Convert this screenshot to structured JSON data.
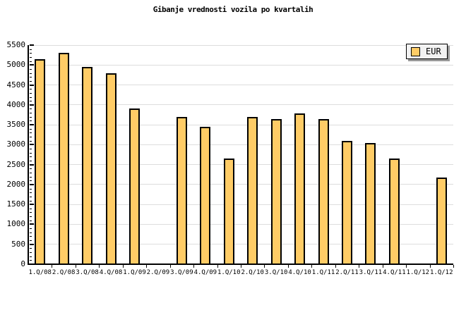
{
  "title": "Gibanje vrednosti vozila po kvartalih",
  "legend": {
    "label": "EUR"
  },
  "colors": {
    "background": "#FFFFFF",
    "bar_fill": "#FFCC66",
    "bar_border": "#000000",
    "grid": "#DDDDDD",
    "axis": "#000000",
    "legend_bg": "#F2F2F2",
    "legend_shadow": "#999999"
  },
  "chart_data": {
    "type": "bar",
    "title": "Gibanje vrednosti vozila po kvartalih",
    "categories": [
      "1.Q/08",
      "2.Q/08",
      "3.Q/08",
      "4.Q/08",
      "1.Q/09",
      "2.Q/09",
      "3.Q/09",
      "4.Q/09",
      "1.Q/10",
      "2.Q/10",
      "3.Q/10",
      "4.Q/10",
      "1.Q/11",
      "2.Q/11",
      "3.Q/11",
      "4.Q/11",
      "1.Q/12",
      "1.Q/12"
    ],
    "series": [
      {
        "name": "EUR",
        "values": [
          5150,
          5300,
          4950,
          4800,
          3900,
          null,
          3700,
          3450,
          2650,
          3700,
          3650,
          3780,
          3650,
          3100,
          3050,
          2650,
          null,
          2180
        ]
      }
    ],
    "xlabel": "",
    "ylabel": "",
    "ylim": [
      0,
      5500
    ],
    "ytick_step": 500,
    "y_minor_tick_step": 100,
    "grid": true,
    "legend_position": "top-right"
  }
}
